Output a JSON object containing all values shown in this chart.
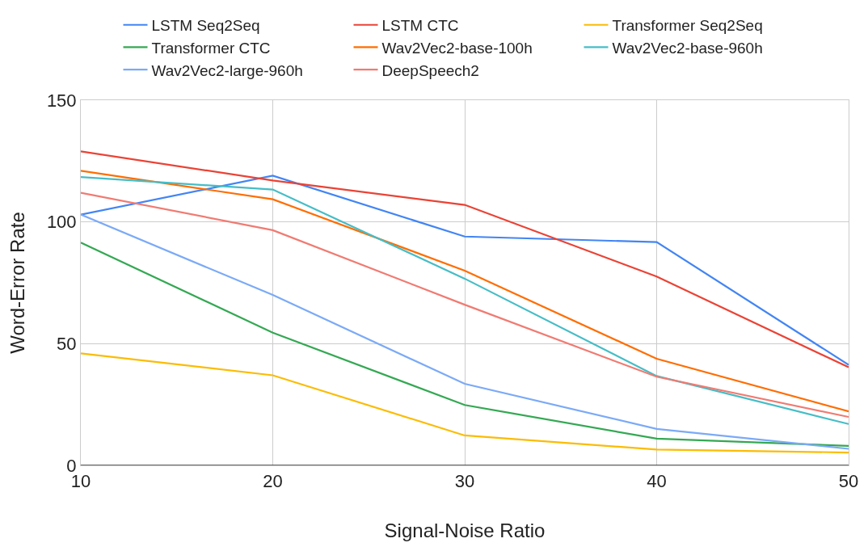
{
  "chart_data": {
    "type": "line",
    "xlabel": "Signal-Noise Ratio",
    "ylabel": "Word-Error Rate",
    "x": [
      10,
      20,
      30,
      40,
      50
    ],
    "xlim": [
      10,
      50
    ],
    "xticks": [
      10,
      20,
      30,
      40,
      50
    ],
    "ylim": [
      0,
      150
    ],
    "yticks": [
      0,
      50,
      100,
      150
    ],
    "grid": true,
    "legend": "top",
    "marker": "none",
    "line_style": "solid",
    "series": [
      {
        "name": "LSTM Seq2Seq",
        "color": "#4285f4",
        "values": [
          103,
          119,
          94,
          91.7,
          41.3
        ]
      },
      {
        "name": "LSTM CTC",
        "color": "#ea4335",
        "values": [
          129,
          117,
          107,
          77.6,
          40.3
        ]
      },
      {
        "name": "Transformer Seq2Seq",
        "color": "#fbbc04",
        "values": [
          46,
          37,
          12.3,
          6.5,
          5.3
        ]
      },
      {
        "name": "Transformer CTC",
        "color": "#34a853",
        "values": [
          91.5,
          54.5,
          24.8,
          11,
          8
        ]
      },
      {
        "name": "Wav2Vec2-base-100h",
        "color": "#ff6d01",
        "values": [
          121,
          109.3,
          80,
          43.8,
          22.2
        ]
      },
      {
        "name": "Wav2Vec2-base-960h",
        "color": "#46bdc6",
        "values": [
          118.4,
          113.3,
          76.7,
          36.7,
          17
        ]
      },
      {
        "name": "Wav2Vec2-large-960h",
        "color": "#7baaf7",
        "values": [
          103,
          70,
          33.5,
          15,
          6.8
        ]
      },
      {
        "name": "DeepSpeech2",
        "color": "#f07b72",
        "values": [
          112,
          96.6,
          66,
          36.4,
          19.9
        ]
      }
    ]
  }
}
